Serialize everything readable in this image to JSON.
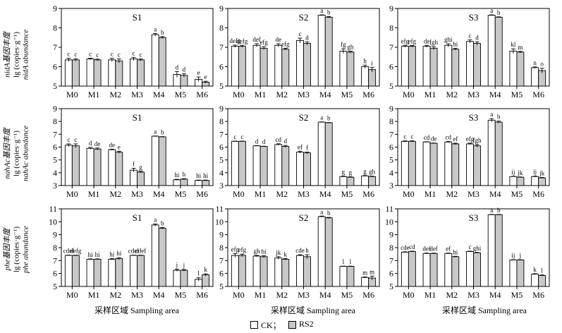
{
  "chart_data": {
    "type": "bar",
    "categories": [
      "M0",
      "M1",
      "M2",
      "M3",
      "M4",
      "M5",
      "M6"
    ],
    "xlabel": "采样区域 Sampling area",
    "legend": [
      "CK；",
      "RS2"
    ],
    "colors": {
      "CK": "#ffffff",
      "RS2": "#c8c8c8"
    },
    "rows": [
      {
        "ylabel_cn": "nidA基因丰度",
        "ylabel_unit": "lg (copies·g⁻¹)",
        "ylabel_en": "nidA abundance",
        "ylim": [
          5,
          9
        ],
        "yticks": [
          5,
          6,
          7,
          8,
          9
        ],
        "panels": [
          {
            "title": "S1",
            "series": [
              {
                "name": "CK",
                "values": [
                  6.35,
                  6.4,
                  6.35,
                  6.4,
                  7.65,
                  5.6,
                  5.35
                ],
                "errors": [
                  0.08,
                  0.04,
                  0.08,
                  0.08,
                  0.06,
                  0.15,
                  0.12
                ],
                "letters": [
                  "c",
                  "c",
                  "c",
                  "c",
                  "a",
                  "d",
                  "e"
                ]
              },
              {
                "name": "RS2",
                "values": [
                  6.35,
                  6.35,
                  6.3,
                  6.35,
                  7.5,
                  5.55,
                  5.2
                ],
                "errors": [
                  0.06,
                  0.04,
                  0.1,
                  0.05,
                  0.05,
                  0.08,
                  0.05
                ],
                "letters": [
                  "c",
                  "c",
                  "c",
                  "c",
                  "b",
                  "d",
                  "e"
                ]
              }
            ]
          },
          {
            "title": "S2",
            "series": [
              {
                "name": "CK",
                "values": [
                  7.05,
                  7.1,
                  7.1,
                  7.35,
                  8.65,
                  6.8,
                  6.0
                ],
                "errors": [
                  0.06,
                  0.08,
                  0.08,
                  0.12,
                  0.02,
                  0.12,
                  0.08
                ],
                "letters": [
                  "defg",
                  "def",
                  "de",
                  "c",
                  "a",
                  "fg",
                  "h"
                ]
              },
              {
                "name": "RS2",
                "values": [
                  7.05,
                  6.95,
                  6.9,
                  7.2,
                  8.55,
                  6.75,
                  5.85
                ],
                "errors": [
                  0.05,
                  0.08,
                  0.05,
                  0.08,
                  0.03,
                  0.05,
                  0.12
                ],
                "letters": [
                  "defg",
                  "efg",
                  "efg",
                  "d",
                  "b",
                  "gh",
                  "i"
                ]
              }
            ]
          },
          {
            "title": "S3",
            "series": [
              {
                "name": "CK",
                "values": [
                  7.05,
                  7.05,
                  7.1,
                  7.3,
                  8.65,
                  6.8,
                  5.95
                ],
                "errors": [
                  0.05,
                  0.05,
                  0.08,
                  0.08,
                  0.02,
                  0.12,
                  0.04
                ],
                "letters": [
                  "efg",
                  "de",
                  "ghi",
                  "c",
                  "a",
                  "kl",
                  "n"
                ]
              },
              {
                "name": "RS2",
                "values": [
                  7.05,
                  6.95,
                  6.9,
                  7.2,
                  8.55,
                  6.75,
                  5.8
                ],
                "errors": [
                  0.04,
                  0.08,
                  0.05,
                  0.08,
                  0.02,
                  0.04,
                  0.12
                ],
                "letters": [
                  "efg",
                  "fgh",
                  "hi",
                  "d",
                  "b",
                  "m",
                  "o"
                ]
              }
            ]
          }
        ]
      },
      {
        "ylabel_cn": "nahAc基因丰度",
        "ylabel_unit": "lg (copies·g⁻¹)",
        "ylabel_en": "nahAc abundance",
        "ylim": [
          3,
          9
        ],
        "yticks": [
          3,
          4,
          5,
          6,
          7,
          8,
          9
        ],
        "panels": [
          {
            "title": "S1",
            "series": [
              {
                "name": "CK",
                "values": [
                  6.15,
                  5.9,
                  5.8,
                  4.2,
                  6.85,
                  3.45,
                  3.4
                ],
                "errors": [
                  0.1,
                  0.08,
                  0.04,
                  0.15,
                  0.02,
                  0.04,
                  0.03
                ],
                "letters": [
                  "c",
                  "d",
                  "de",
                  "f",
                  "a",
                  "hi",
                  "hi"
                ]
              },
              {
                "name": "RS2",
                "values": [
                  6.1,
                  5.85,
                  5.6,
                  4.05,
                  6.8,
                  3.5,
                  3.4
                ],
                "errors": [
                  0.15,
                  0.08,
                  0.08,
                  0.06,
                  0.02,
                  0.04,
                  0.03
                ],
                "letters": [
                  "c",
                  "de",
                  "e",
                  "g",
                  "b",
                  "h",
                  "hi"
                ]
              }
            ]
          },
          {
            "title": "S2",
            "series": [
              {
                "name": "CK",
                "values": [
                  6.45,
                  6.1,
                  6.2,
                  5.6,
                  7.95,
                  3.7,
                  3.75
                ],
                "errors": [
                  0.02,
                  0.02,
                  0.06,
                  0.08,
                  0.02,
                  0.03,
                  0.03
                ],
                "letters": [
                  "c",
                  "d",
                  "cd",
                  "ef",
                  "a",
                  "g",
                  "g"
                ]
              },
              {
                "name": "RS2",
                "values": [
                  6.45,
                  6.05,
                  6.05,
                  5.55,
                  7.9,
                  3.65,
                  3.7
                ],
                "errors": [
                  0.02,
                  0.02,
                  0.08,
                  0.06,
                  0.02,
                  0.03,
                  0.03
                ],
                "letters": [
                  "c",
                  "d",
                  "d",
                  "f",
                  "b",
                  "g",
                  "gh"
                ]
              }
            ]
          },
          {
            "title": "S3",
            "series": [
              {
                "name": "CK",
                "values": [
                  6.45,
                  6.4,
                  6.4,
                  6.25,
                  8.1,
                  3.7,
                  3.7
                ],
                "errors": [
                  0.04,
                  0.02,
                  0.04,
                  0.06,
                  0.12,
                  0.02,
                  0.03
                ],
                "letters": [
                  "c",
                  "cd",
                  "cd",
                  "efg",
                  "a",
                  "ij",
                  "ij"
                ]
              },
              {
                "name": "RS2",
                "values": [
                  6.45,
                  6.3,
                  6.25,
                  6.1,
                  7.95,
                  3.65,
                  3.6
                ],
                "errors": [
                  0.04,
                  0.02,
                  0.06,
                  0.1,
                  0.08,
                  0.02,
                  0.03
                ],
                "letters": [
                  "c",
                  "de",
                  "ef",
                  "fgh",
                  "b",
                  "jk",
                  "jk"
                ]
              }
            ]
          }
        ]
      },
      {
        "ylabel_cn": "phe基因丰度",
        "ylabel_unit": "lg (copies·g⁻¹)",
        "ylabel_en": "phe abundance",
        "ylim": [
          5,
          11
        ],
        "yticks": [
          5,
          6,
          7,
          8,
          9,
          10,
          11
        ],
        "panels": [
          {
            "title": "S1",
            "series": [
              {
                "name": "CK",
                "values": [
                  7.4,
                  7.1,
                  7.1,
                  7.4,
                  9.75,
                  6.25,
                  5.55
                ],
                "errors": [
                  0.02,
                  0.03,
                  0.05,
                  0.02,
                  0.08,
                  0.08,
                  0.12
                ],
                "letters": [
                  "cdef",
                  "hi",
                  "hi",
                  "cdef",
                  "a",
                  "j",
                  "l"
                ]
              },
              {
                "name": "RS2",
                "values": [
                  7.4,
                  7.1,
                  7.15,
                  7.4,
                  9.5,
                  6.25,
                  5.9
                ],
                "errors": [
                  0.02,
                  0.03,
                  0.08,
                  0.02,
                  0.06,
                  0.06,
                  0.08
                ],
                "letters": [
                  "defg",
                  "hi",
                  "hi",
                  "cdef",
                  "b",
                  "j",
                  "k"
                ]
              }
            ]
          },
          {
            "title": "S2",
            "series": [
              {
                "name": "CK",
                "values": [
                  7.4,
                  7.35,
                  7.2,
                  7.4,
                  10.4,
                  6.55,
                  5.7
                ],
                "errors": [
                  0.15,
                  0.05,
                  0.1,
                  0.05,
                  0.04,
                  0.02,
                  0.04
                ],
                "letters": [
                  "efg",
                  "gh",
                  "jk",
                  "cde",
                  "a",
                  "l",
                  "m"
                ]
              },
              {
                "name": "RS2",
                "values": [
                  7.4,
                  7.3,
                  7.1,
                  7.3,
                  10.3,
                  6.55,
                  5.65
                ],
                "errors": [
                  0.1,
                  0.08,
                  0.05,
                  0.15,
                  0.04,
                  0.02,
                  0.15
                ],
                "letters": [
                  "efg",
                  "hi",
                  "k",
                  "h",
                  "b",
                  "l",
                  "m"
                ]
              }
            ]
          },
          {
            "title": "S3",
            "series": [
              {
                "name": "CK",
                "values": [
                  7.65,
                  7.55,
                  7.55,
                  7.7,
                  10.55,
                  7.05,
                  5.95
                ],
                "errors": [
                  0.03,
                  0.03,
                  0.03,
                  0.03,
                  0.02,
                  0.02,
                  0.04
                ],
                "letters": [
                  "cde",
                  "def",
                  "ef",
                  "c",
                  "a",
                  "ij",
                  "k"
                ]
              },
              {
                "name": "RS2",
                "values": [
                  7.7,
                  7.55,
                  7.3,
                  7.6,
                  10.55,
                  7.05,
                  5.85
                ],
                "errors": [
                  0.03,
                  0.03,
                  0.03,
                  0.03,
                  0.02,
                  0.02,
                  0.04
                ],
                "letters": [
                  "cd",
                  "def",
                  "hi",
                  "ghi",
                  "b",
                  "j",
                  "l"
                ]
              }
            ]
          }
        ]
      }
    ]
  }
}
